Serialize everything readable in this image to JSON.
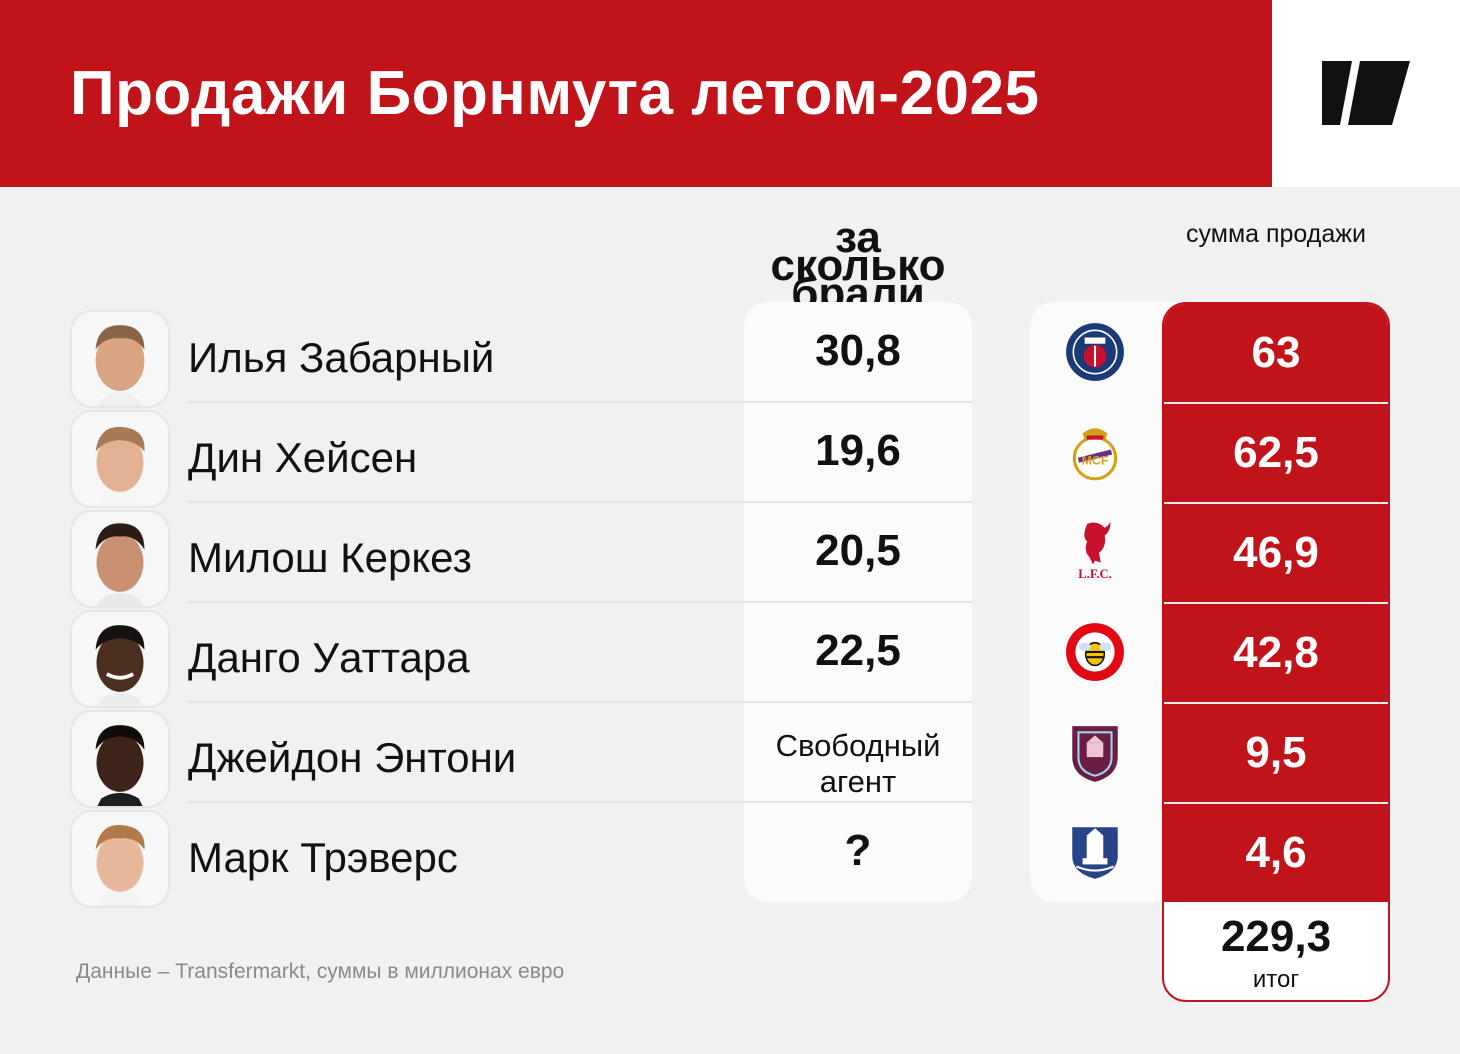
{
  "title": "Продажи Борнмута летом-2025",
  "brand_logo": "sports-ru-logo",
  "colors": {
    "accent": "#c1131a",
    "background": "#f1f1f1",
    "panel": "#fbfbfb"
  },
  "columns": {
    "paid_header": "за сколько брали",
    "sale_header": "сумма продажи"
  },
  "chart_data": {
    "type": "table",
    "title": "Продажи Борнмута летом-2025",
    "columns": [
      "за сколько брали",
      "сумма продажи"
    ],
    "rows": [
      {
        "player": "Илья Забарный",
        "paid": "30,8",
        "sale": "63",
        "club_icon": "psg-crest-icon"
      },
      {
        "player": "Дин Хейсен",
        "paid": "19,6",
        "sale": "62,5",
        "club_icon": "real-madrid-crest-icon"
      },
      {
        "player": "Милош Керкез",
        "paid": "20,5",
        "sale": "46,9",
        "club_icon": "liverpool-crest-icon"
      },
      {
        "player": "Данго Уаттара",
        "paid": "22,5",
        "sale": "42,8",
        "club_icon": "brentford-crest-icon"
      },
      {
        "player": "Джейдон Энтони",
        "paid": "Свободный агент",
        "sale": "9,5",
        "club_icon": "burnley-crest-icon"
      },
      {
        "player": "Марк Трэверс",
        "paid": "?",
        "sale": "4,6",
        "club_icon": "everton-crest-icon"
      }
    ],
    "total": {
      "value": "229,3",
      "label": "итог"
    }
  },
  "footer": {
    "source": "Данные – Transfermarkt, суммы в миллионах евро"
  }
}
